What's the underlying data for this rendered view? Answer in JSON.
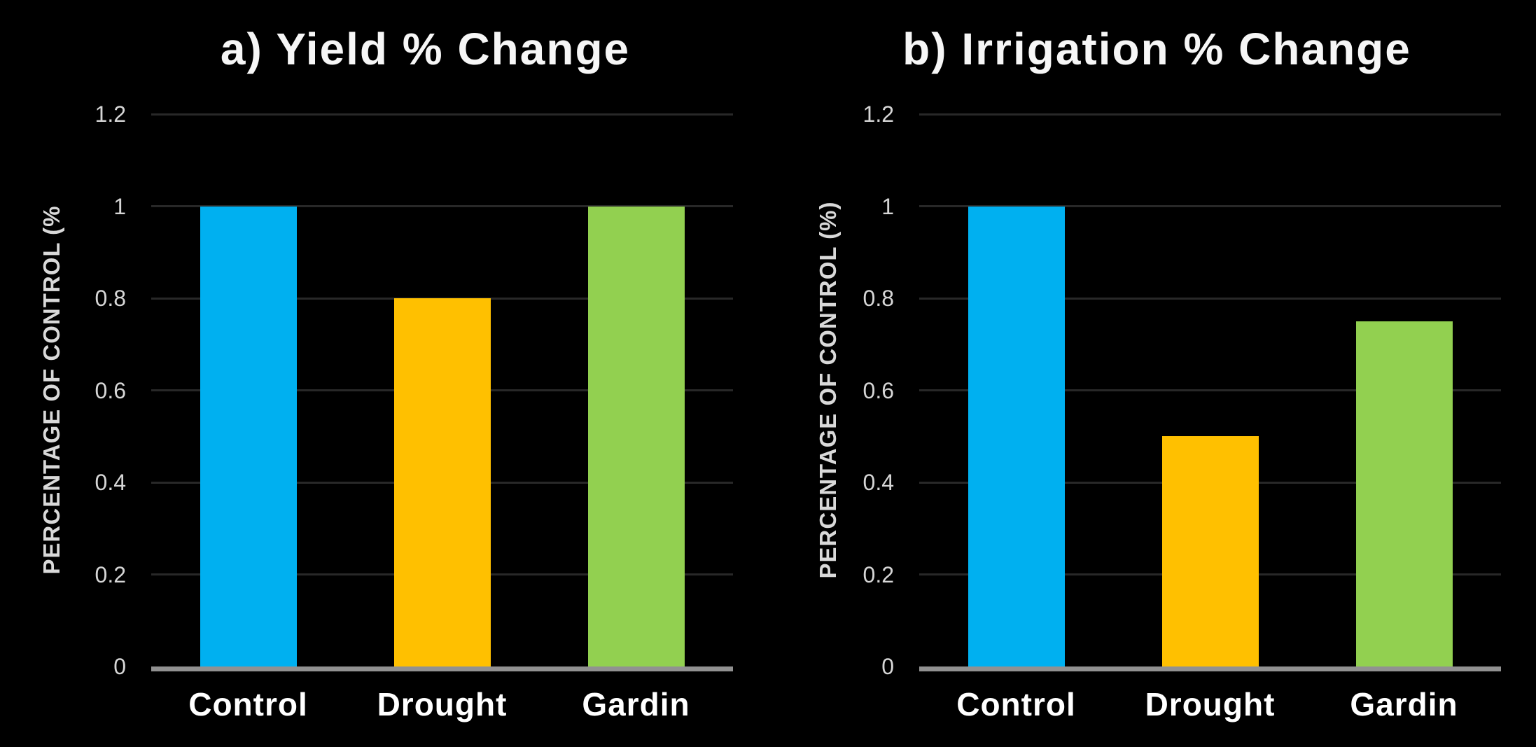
{
  "style": {
    "background": "#000000",
    "title_color": "#f6f6f6",
    "tick_label_color": "#d6d6d6",
    "category_label_color": "#ffffff",
    "axis_title_color": "#d9d9d9",
    "gridline_color": "#282828",
    "axis_line_color": "#919191"
  },
  "chart_data": [
    {
      "type": "bar",
      "title": "a) Yield % Change",
      "xlabel": "",
      "ylabel": "PERCENTAGE OF CONTROL (%",
      "categories": [
        "Control",
        "Drought",
        "Gardin"
      ],
      "values": [
        1,
        0.8,
        1
      ],
      "bar_colors": [
        "#00B0F0",
        "#FFC000",
        "#92D050"
      ],
      "ylim": [
        0,
        1.2
      ],
      "yticks": [
        0,
        0.2,
        0.4,
        0.6,
        0.8,
        1,
        1.2
      ],
      "ytick_labels": [
        "0",
        "0.2",
        "0.4",
        "0.6",
        "0.8",
        "1",
        "1.2"
      ],
      "grid": true,
      "legend": false
    },
    {
      "type": "bar",
      "title": "b) Irrigation % Change",
      "xlabel": "",
      "ylabel": "PERCENTAGE OF CONTROL (%)",
      "categories": [
        "Control",
        "Drought",
        "Gardin"
      ],
      "values": [
        1,
        0.5,
        0.75
      ],
      "bar_colors": [
        "#00B0F0",
        "#FFC000",
        "#92D050"
      ],
      "ylim": [
        0,
        1.2
      ],
      "yticks": [
        0,
        0.2,
        0.4,
        0.6,
        0.8,
        1,
        1.2
      ],
      "ytick_labels": [
        "0",
        "0.2",
        "0.4",
        "0.6",
        "0.8",
        "1",
        "1.2"
      ],
      "grid": true,
      "legend": false
    }
  ]
}
